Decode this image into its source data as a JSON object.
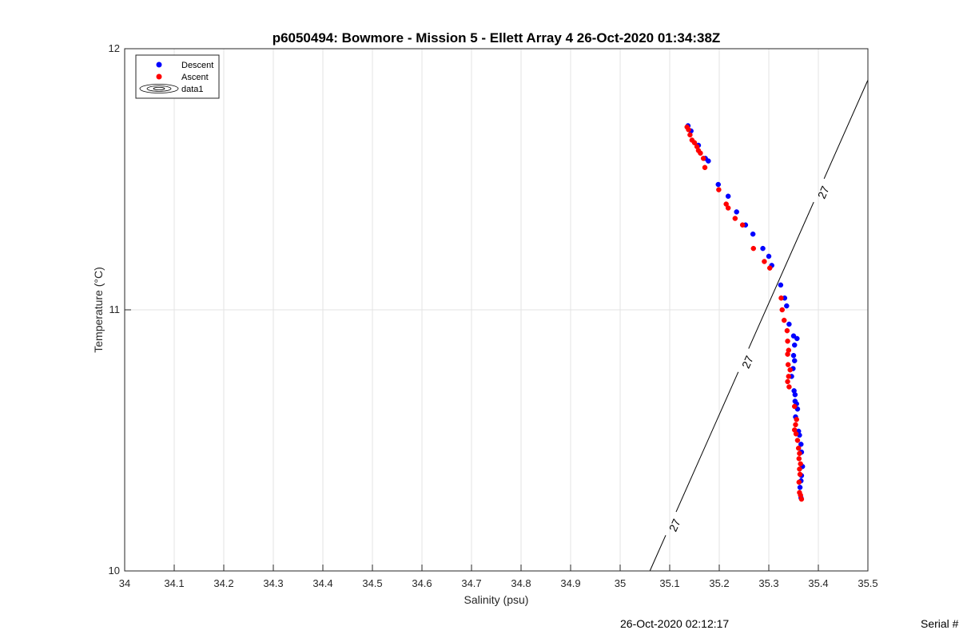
{
  "figure": {
    "footer_timestamp": "26-Oct-2020 02:12:17",
    "footer_serial": "Serial #"
  },
  "chart_data": {
    "type": "scatter",
    "title": "p6050494: Bowmore - Mission 5 - Ellett Array 4 26-Oct-2020 01:34:38Z",
    "xlabel": "Salinity (psu)",
    "ylabel": "Temperature (°C)",
    "xlim": [
      34,
      35.5
    ],
    "ylim": [
      10,
      12
    ],
    "xticks": [
      34,
      34.1,
      34.2,
      34.3,
      34.4,
      34.5,
      34.6,
      34.7,
      34.8,
      34.9,
      35,
      35.1,
      35.2,
      35.3,
      35.4,
      35.5
    ],
    "xtick_labels": [
      "34",
      "34.1",
      "34.2",
      "34.3",
      "34.4",
      "34.5",
      "34.6",
      "34.7",
      "34.8",
      "34.9",
      "35",
      "35.1",
      "35.2",
      "35.3",
      "35.4",
      "35.5"
    ],
    "yticks": [
      10,
      11,
      12
    ],
    "ytick_labels": [
      "10",
      "11",
      "12"
    ],
    "grid": true,
    "legend_position": "top-left",
    "legend": [
      {
        "label": "Descent",
        "kind": "marker",
        "color": "#0000ff"
      },
      {
        "label": "Ascent",
        "kind": "marker",
        "color": "#ff0000"
      },
      {
        "label": "data1",
        "kind": "contour",
        "color": "#000000"
      }
    ],
    "series": [
      {
        "name": "Descent",
        "color": "#0000ff",
        "points": [
          [
            35.137,
            11.705
          ],
          [
            35.143,
            11.685
          ],
          [
            35.158,
            11.63
          ],
          [
            35.172,
            11.58
          ],
          [
            35.178,
            11.57
          ],
          [
            35.198,
            11.48
          ],
          [
            35.218,
            11.435
          ],
          [
            35.235,
            11.375
          ],
          [
            35.253,
            11.325
          ],
          [
            35.268,
            11.29
          ],
          [
            35.288,
            11.235
          ],
          [
            35.3,
            11.205
          ],
          [
            35.306,
            11.17
          ],
          [
            35.324,
            11.095
          ],
          [
            35.332,
            11.045
          ],
          [
            35.336,
            11.015
          ],
          [
            35.341,
            10.945
          ],
          [
            35.35,
            10.9
          ],
          [
            35.357,
            10.89
          ],
          [
            35.352,
            10.865
          ],
          [
            35.35,
            10.825
          ],
          [
            35.352,
            10.805
          ],
          [
            35.349,
            10.775
          ],
          [
            35.346,
            10.745
          ],
          [
            35.351,
            10.69
          ],
          [
            35.353,
            10.675
          ],
          [
            35.353,
            10.65
          ],
          [
            35.356,
            10.64
          ],
          [
            35.358,
            10.62
          ],
          [
            35.354,
            10.59
          ],
          [
            35.36,
            10.535
          ],
          [
            35.362,
            10.52
          ],
          [
            35.365,
            10.485
          ],
          [
            35.366,
            10.455
          ],
          [
            35.368,
            10.4
          ],
          [
            35.366,
            10.365
          ],
          [
            35.365,
            10.345
          ],
          [
            35.363,
            10.32
          ],
          [
            35.365,
            10.28
          ]
        ]
      },
      {
        "name": "Ascent",
        "color": "#ff0000",
        "points": [
          [
            35.135,
            11.7
          ],
          [
            35.138,
            11.69
          ],
          [
            35.141,
            11.67
          ],
          [
            35.145,
            11.65
          ],
          [
            35.15,
            11.64
          ],
          [
            35.155,
            11.625
          ],
          [
            35.158,
            11.61
          ],
          [
            35.162,
            11.6
          ],
          [
            35.168,
            11.58
          ],
          [
            35.171,
            11.545
          ],
          [
            35.199,
            11.46
          ],
          [
            35.214,
            11.405
          ],
          [
            35.218,
            11.39
          ],
          [
            35.232,
            11.35
          ],
          [
            35.247,
            11.325
          ],
          [
            35.269,
            11.235
          ],
          [
            35.291,
            11.185
          ],
          [
            35.302,
            11.16
          ],
          [
            35.325,
            11.045
          ],
          [
            35.327,
            11.0
          ],
          [
            35.331,
            10.96
          ],
          [
            35.337,
            10.92
          ],
          [
            35.338,
            10.88
          ],
          [
            35.34,
            10.845
          ],
          [
            35.338,
            10.83
          ],
          [
            35.339,
            10.79
          ],
          [
            35.343,
            10.77
          ],
          [
            35.34,
            10.745
          ],
          [
            35.338,
            10.725
          ],
          [
            35.341,
            10.705
          ],
          [
            35.352,
            10.63
          ],
          [
            35.356,
            10.58
          ],
          [
            35.354,
            10.56
          ],
          [
            35.352,
            10.54
          ],
          [
            35.355,
            10.525
          ],
          [
            35.358,
            10.5
          ],
          [
            35.36,
            10.47
          ],
          [
            35.362,
            10.45
          ],
          [
            35.361,
            10.43
          ],
          [
            35.364,
            10.41
          ],
          [
            35.362,
            10.39
          ],
          [
            35.363,
            10.37
          ],
          [
            35.361,
            10.34
          ],
          [
            35.362,
            10.3
          ],
          [
            35.364,
            10.29
          ],
          [
            35.366,
            10.275
          ]
        ]
      }
    ],
    "contour": {
      "name": "data1",
      "level": 27,
      "level_label": "27",
      "line_points": [
        [
          35.06,
          10.0
        ],
        [
          35.5,
          11.88
        ]
      ],
      "label_points": [
        [
          35.11,
          10.175
        ],
        [
          35.257,
          10.8
        ],
        [
          35.41,
          11.45
        ]
      ]
    }
  }
}
